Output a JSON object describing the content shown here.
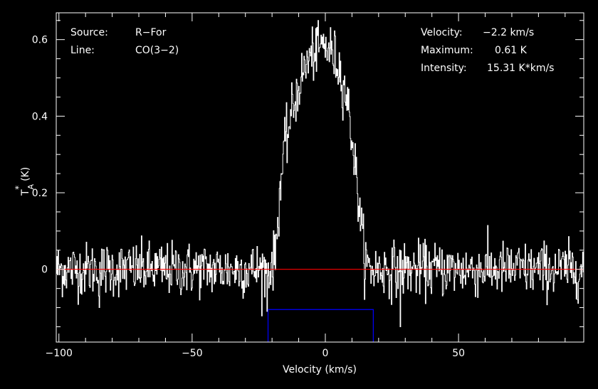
{
  "chart_data": {
    "type": "line",
    "xlabel": "Velocity (km/s)",
    "ylabel": {
      "main": "T",
      "sub": "A",
      "sup": "*",
      "unit": "(K)"
    },
    "xlim": [
      -101,
      97
    ],
    "ylim": [
      -0.19,
      0.67
    ],
    "x_ticks": [
      -100,
      -50,
      0,
      50
    ],
    "x_tick_labels": [
      "−100",
      "−50",
      "0",
      "50"
    ],
    "y_ticks": [
      0,
      0.2,
      0.4,
      0.6
    ],
    "y_tick_labels": [
      "0",
      "0.2",
      "0.4",
      "0.6"
    ],
    "baseline": 0,
    "window": {
      "xmin": -21.5,
      "xmax": 18,
      "top": -0.105
    },
    "annotations_left": [
      {
        "label": "Source:",
        "value": "R−For"
      },
      {
        "label": "Line:",
        "value": "CO(3−2)"
      }
    ],
    "annotations_right": [
      {
        "label": "Velocity:",
        "value": "−2.2 km/s"
      },
      {
        "label": "Maximum:",
        "value": "0.61 K"
      },
      {
        "label": "Intensity:",
        "value": "15.31 K*km/s"
      }
    ],
    "series": [
      {
        "profile_nodes": [
          [
            -101,
            0
          ],
          [
            -21,
            0
          ],
          [
            -19,
            0.03
          ],
          [
            -18,
            0.12
          ],
          [
            -17,
            0.22
          ],
          [
            -15.5,
            0.31
          ],
          [
            -13,
            0.4
          ],
          [
            -10,
            0.48
          ],
          [
            -7,
            0.54
          ],
          [
            -4,
            0.57
          ],
          [
            -1,
            0.585
          ],
          [
            2,
            0.57
          ],
          [
            5,
            0.53
          ],
          [
            8,
            0.45
          ],
          [
            10,
            0.34
          ],
          [
            12,
            0.21
          ],
          [
            13.5,
            0.1
          ],
          [
            15,
            0.02
          ],
          [
            16.5,
            0
          ],
          [
            97,
            0
          ]
        ],
        "noise_sigma": 0.035,
        "n_channels": 900,
        "spikes": [
          [
            28,
            -0.15
          ],
          [
            -22,
            -0.11
          ],
          [
            -85,
            -0.1
          ]
        ]
      }
    ],
    "colors": {
      "background": "#000000",
      "spectrum": "#ffffff",
      "axes": "#ffffff",
      "baseline": "#ff0000",
      "window": "#0000ff"
    }
  }
}
